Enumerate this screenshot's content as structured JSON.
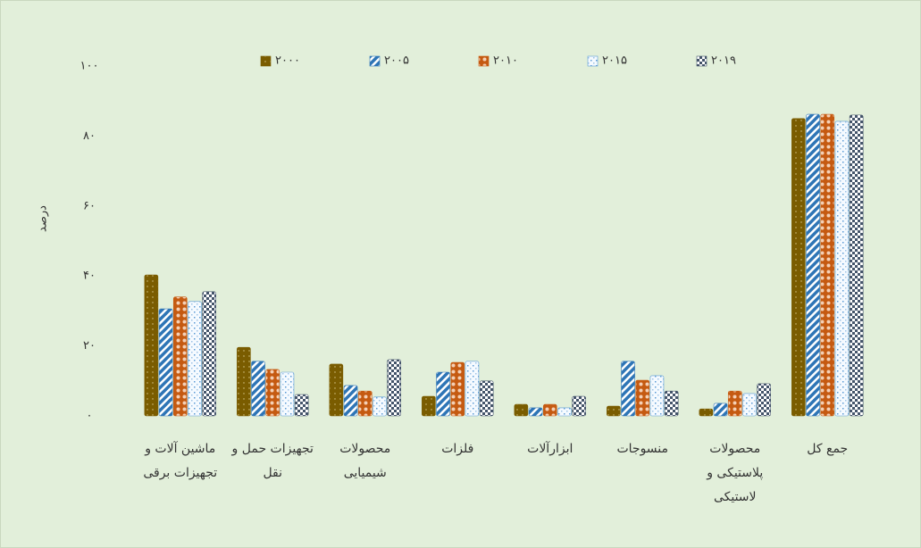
{
  "chart_data": {
    "type": "bar",
    "ylabel": "درصد",
    "categories": [
      "ماشین آلات و تجهیزات برقی",
      "تجهیزات حمل و نقل",
      "محصولات شیمیایی",
      "فلزات",
      "ابزارآلات",
      "منسوجات",
      "محصولات پلاستیکی و لاستیکی",
      "جمع کل"
    ],
    "series": [
      {
        "name": "۲۰۰۰",
        "color": "#7a5c00",
        "values": [
          40.3,
          19.6,
          14.8,
          5.6,
          3.3,
          2.8,
          2.0,
          85.0
        ]
      },
      {
        "name": "۲۰۰۵",
        "color": "#2e75b6",
        "values": [
          30.6,
          15.6,
          8.7,
          12.5,
          2.3,
          15.6,
          3.6,
          86.2
        ]
      },
      {
        "name": "۲۰۱۰",
        "color": "#c55a11",
        "values": [
          34.0,
          13.3,
          7.1,
          15.3,
          3.3,
          10.2,
          7.1,
          86.2
        ]
      },
      {
        "name": "۲۰۱۵",
        "color": "#5b9bd5",
        "values": [
          32.7,
          12.5,
          5.4,
          15.6,
          2.3,
          11.5,
          6.4,
          84.2
        ]
      },
      {
        "name": "۲۰۱۹",
        "color": "#44546a",
        "values": [
          35.5,
          6.1,
          16.1,
          10.0,
          5.6,
          7.1,
          9.2,
          86.0
        ]
      }
    ],
    "ylim": [
      0,
      100
    ],
    "yticks": [
      {
        "value": 0,
        "label": "۰"
      },
      {
        "value": 20,
        "label": "۲۰"
      },
      {
        "value": 40,
        "label": "۴۰"
      },
      {
        "value": 60,
        "label": "۶۰"
      },
      {
        "value": 80,
        "label": "۸۰"
      },
      {
        "value": 100,
        "label": "۱۰۰"
      }
    ],
    "grid": false,
    "legend": "top"
  }
}
